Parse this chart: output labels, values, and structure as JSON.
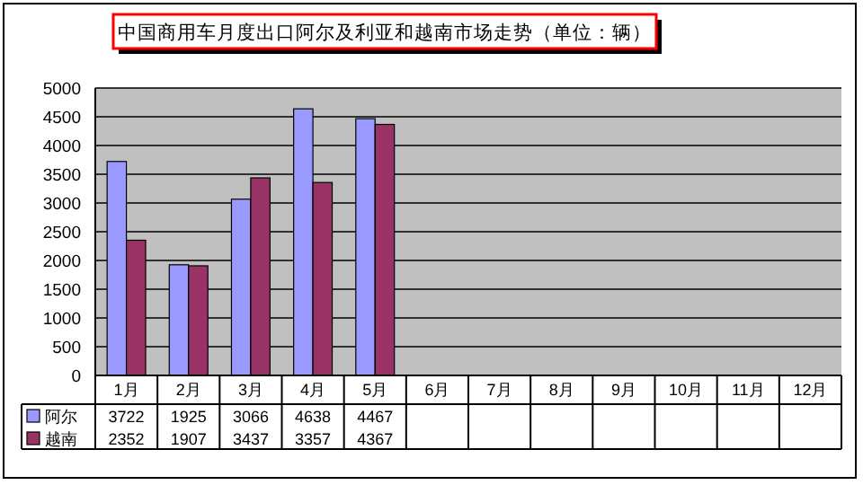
{
  "chart_data": {
    "type": "bar",
    "title": "中国商用车月度出口阿尔及利亚和越南市场走势（单位：辆）",
    "categories": [
      "1月",
      "2月",
      "3月",
      "4月",
      "5月",
      "6月",
      "7月",
      "8月",
      "9月",
      "10月",
      "11月",
      "12月"
    ],
    "series": [
      {
        "name": "阿尔",
        "color": "#9999ff",
        "values": [
          3722,
          1925,
          3066,
          4638,
          4467,
          null,
          null,
          null,
          null,
          null,
          null,
          null
        ]
      },
      {
        "name": "越南",
        "color": "#993366",
        "values": [
          2352,
          1907,
          3437,
          3357,
          4367,
          null,
          null,
          null,
          null,
          null,
          null,
          null
        ]
      }
    ],
    "ylim": [
      0,
      5000
    ],
    "yticks": [
      0,
      500,
      1000,
      1500,
      2000,
      2500,
      3000,
      3500,
      4000,
      4500,
      5000
    ],
    "grid": "y",
    "legend": "bottom",
    "data_labels": true
  }
}
